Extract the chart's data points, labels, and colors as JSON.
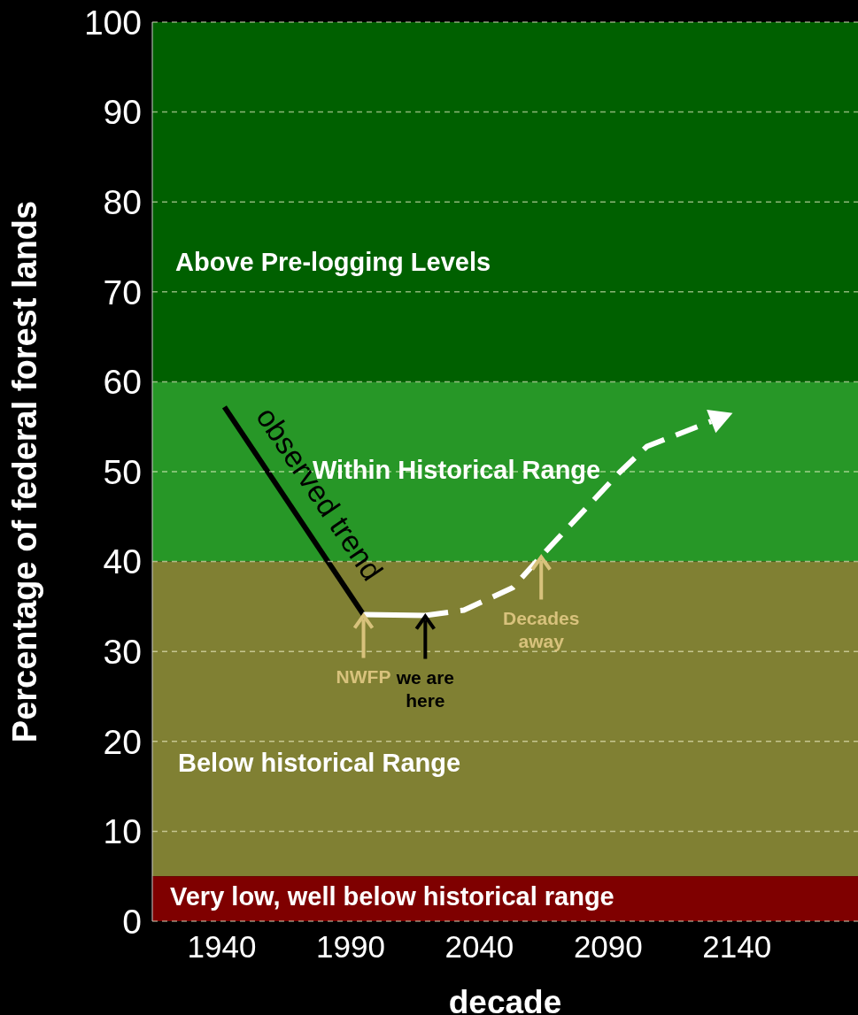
{
  "chart_data": {
    "type": "line",
    "xlabel": "decade",
    "ylabel": "Percentage of federal forest lands",
    "xlim": [
      1913,
      2187
    ],
    "xticks": [
      1940,
      1990,
      2040,
      2090,
      2140
    ],
    "ylim": [
      0,
      100
    ],
    "yticks": [
      0,
      10,
      20,
      30,
      40,
      50,
      60,
      70,
      80,
      90,
      100
    ],
    "grid": "y",
    "marker": "none",
    "series": [
      {
        "name": "observed trend",
        "color": "#000000",
        "x": [
          1941,
          1995
        ],
        "values": [
          57.2,
          34.1
        ],
        "line_style": "solid"
      },
      {
        "color": "#ffffff",
        "x": [
          1995,
          2019
        ],
        "values": [
          34.1,
          34.0
        ],
        "line_style": "solid"
      },
      {
        "color": "#ffffff",
        "x": [
          2019,
          2034,
          2053,
          2064,
          2094,
          2105,
          2130
        ],
        "values": [
          34.0,
          34.6,
          37.1,
          40.6,
          49.8,
          52.8,
          55.6
        ],
        "line_style": "dashed"
      }
    ],
    "bands": [
      {
        "axis": "y",
        "from": 60,
        "to": 100,
        "label": "Above Pre-logging Levels",
        "color": "#006000"
      },
      {
        "axis": "y",
        "from": 40,
        "to": 60,
        "label": "Within Historical Range",
        "color": "#279727"
      },
      {
        "axis": "y",
        "from": 5,
        "to": 40,
        "label": "Below historical Range",
        "color": "#808033"
      },
      {
        "axis": "y",
        "from": 0,
        "to": 5,
        "label": "Very low, well below historical range",
        "color": "#7f0000"
      }
    ],
    "annotations": [
      {
        "text": "NWFP",
        "x": 1995,
        "y": 34.1
      },
      {
        "text": "we are here",
        "x": 2019,
        "y": 34.0
      },
      {
        "text": "Decades away",
        "x": 2064,
        "y": 40.6
      }
    ]
  }
}
